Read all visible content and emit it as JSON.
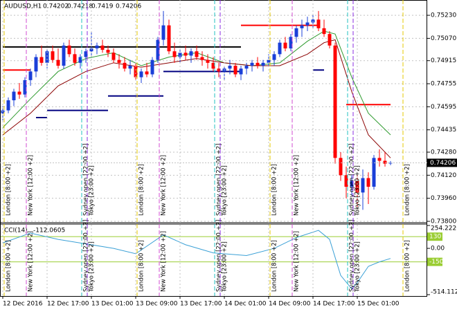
{
  "chart_data": {
    "type": "candlestick",
    "symbol": "AUDUSD,H1",
    "bull_color": "#1a3fd8",
    "bear_color": "#ff0000",
    "grid": true,
    "ylim": [
      0.738,
      0.75336
    ],
    "yticks": [
      {
        "value": 0.7523,
        "label": "0.75230"
      },
      {
        "value": 0.7507,
        "label": "0.75070"
      },
      {
        "value": 0.74915,
        "label": "0.74915"
      },
      {
        "value": 0.74755,
        "label": "0.74755"
      },
      {
        "value": 0.74595,
        "label": "0.74595"
      },
      {
        "value": 0.74435,
        "label": "0.74435"
      },
      {
        "value": 0.7428,
        "label": "0.74280"
      },
      {
        "value": 0.7412,
        "label": "0.74120"
      },
      {
        "value": 0.7396,
        "label": "0.73960"
      },
      {
        "value": 0.738,
        "label": "0.73800"
      }
    ],
    "categories": [
      "12 Dec 2016",
      null,
      null,
      null,
      null,
      null,
      null,
      null,
      "12 Dec 17:00",
      null,
      null,
      null,
      null,
      null,
      null,
      null,
      "13 Dec 01:00",
      null,
      null,
      null,
      null,
      null,
      null,
      null,
      "13 Dec 09:00",
      null,
      null,
      null,
      null,
      null,
      null,
      null,
      "13 Dec 17:00",
      null,
      null,
      null,
      null,
      null,
      null,
      null,
      "14 Dec 01:00",
      null,
      null,
      null,
      null,
      null,
      null,
      null,
      "14 Dec 09:00",
      null,
      null,
      null,
      null,
      null,
      null,
      null,
      "14 Dec 17:00",
      null,
      null,
      null,
      null,
      null,
      null,
      null,
      "15 Dec 01:00",
      null,
      null,
      null,
      null,
      null,
      null
    ],
    "candles": [
      [
        0.7455,
        0.746,
        0.745,
        0.7457
      ],
      [
        0.7457,
        0.7466,
        0.7455,
        0.7464
      ],
      [
        0.7464,
        0.7472,
        0.746,
        0.747
      ],
      [
        0.747,
        0.7476,
        0.7465,
        0.7468
      ],
      [
        0.7468,
        0.748,
        0.7466,
        0.7478
      ],
      [
        0.7478,
        0.7486,
        0.7474,
        0.7484
      ],
      [
        0.7484,
        0.7496,
        0.748,
        0.7494
      ],
      [
        0.7494,
        0.7502,
        0.7488,
        0.749
      ],
      [
        0.749,
        0.75,
        0.7486,
        0.7498
      ],
      [
        0.7498,
        0.7502,
        0.749,
        0.7492
      ],
      [
        0.7492,
        0.75,
        0.7486,
        0.7488
      ],
      [
        0.7488,
        0.7504,
        0.7486,
        0.7502
      ],
      [
        0.7502,
        0.7506,
        0.7494,
        0.7496
      ],
      [
        0.7496,
        0.75,
        0.7488,
        0.749
      ],
      [
        0.749,
        0.7496,
        0.7486,
        0.7494
      ],
      [
        0.7494,
        0.75,
        0.749,
        0.7498
      ],
      [
        0.7498,
        0.7512,
        0.7494,
        0.75
      ],
      [
        0.75,
        0.7504,
        0.7496,
        0.7502
      ],
      [
        0.7502,
        0.7506,
        0.7497,
        0.7499
      ],
      [
        0.7499,
        0.7502,
        0.7494,
        0.7497
      ],
      [
        0.7497,
        0.75,
        0.749,
        0.7492
      ],
      [
        0.7492,
        0.7496,
        0.7486,
        0.749
      ],
      [
        0.749,
        0.7494,
        0.7484,
        0.7486
      ],
      [
        0.7486,
        0.7492,
        0.7482,
        0.7488
      ],
      [
        0.7488,
        0.749,
        0.7478,
        0.748
      ],
      [
        0.748,
        0.7486,
        0.7476,
        0.7484
      ],
      [
        0.7484,
        0.749,
        0.748,
        0.7482
      ],
      [
        0.7482,
        0.7494,
        0.748,
        0.7492
      ],
      [
        0.7492,
        0.7508,
        0.749,
        0.7506
      ],
      [
        0.7506,
        0.7526,
        0.7502,
        0.7516
      ],
      [
        0.7516,
        0.752,
        0.7496,
        0.7498
      ],
      [
        0.7498,
        0.7504,
        0.749,
        0.7494
      ],
      [
        0.7494,
        0.75,
        0.749,
        0.7497
      ],
      [
        0.7497,
        0.7502,
        0.7492,
        0.7495
      ],
      [
        0.7495,
        0.75,
        0.749,
        0.7498
      ],
      [
        0.7498,
        0.7502,
        0.7492,
        0.7494
      ],
      [
        0.7494,
        0.7498,
        0.7488,
        0.7492
      ],
      [
        0.7492,
        0.7496,
        0.7486,
        0.749
      ],
      [
        0.749,
        0.7494,
        0.7484,
        0.7486
      ],
      [
        0.7486,
        0.749,
        0.748,
        0.7484
      ],
      [
        0.7484,
        0.7488,
        0.7478,
        0.7486
      ],
      [
        0.7486,
        0.7492,
        0.7482,
        0.7488
      ],
      [
        0.7488,
        0.749,
        0.748,
        0.7482
      ],
      [
        0.7482,
        0.7488,
        0.7478,
        0.7486
      ],
      [
        0.7486,
        0.749,
        0.7482,
        0.7488
      ],
      [
        0.7488,
        0.7492,
        0.7484,
        0.749
      ],
      [
        0.749,
        0.7494,
        0.7486,
        0.7488
      ],
      [
        0.7488,
        0.7492,
        0.7484,
        0.749
      ],
      [
        0.749,
        0.7496,
        0.7488,
        0.7492
      ],
      [
        0.7492,
        0.7498,
        0.7488,
        0.7496
      ],
      [
        0.7496,
        0.7506,
        0.7494,
        0.7504
      ],
      [
        0.7504,
        0.7508,
        0.7498,
        0.75
      ],
      [
        0.75,
        0.751,
        0.7498,
        0.7508
      ],
      [
        0.7508,
        0.7516,
        0.7504,
        0.7514
      ],
      [
        0.7514,
        0.752,
        0.7508,
        0.7516
      ],
      [
        0.7516,
        0.7522,
        0.7512,
        0.7518
      ],
      [
        0.7518,
        0.7524,
        0.7514,
        0.752
      ],
      [
        0.752,
        0.7526,
        0.7512,
        0.7514
      ],
      [
        0.7514,
        0.752,
        0.7508,
        0.751
      ],
      [
        0.751,
        0.7512,
        0.75,
        0.7502
      ],
      [
        0.7502,
        0.7504,
        0.742,
        0.7424
      ],
      [
        0.7424,
        0.7428,
        0.7408,
        0.7412
      ],
      [
        0.7412,
        0.7418,
        0.7396,
        0.7404
      ],
      [
        0.7404,
        0.7412,
        0.7398,
        0.7408
      ],
      [
        0.7408,
        0.7412,
        0.739,
        0.74
      ],
      [
        0.74,
        0.7416,
        0.7388,
        0.741
      ],
      [
        0.741,
        0.7414,
        0.7392,
        0.7404
      ],
      [
        0.7404,
        0.7426,
        0.7402,
        0.7424
      ],
      [
        0.7424,
        0.743,
        0.7418,
        0.7422
      ],
      [
        0.7422,
        0.7428,
        0.7418,
        0.742
      ],
      [
        0.74202,
        0.74218,
        0.7419,
        0.74206
      ]
    ],
    "moving_averages": [
      {
        "color": "#2e9a2e",
        "x": [
          0,
          5,
          10,
          15,
          20,
          25,
          30,
          35,
          40,
          45,
          50,
          55,
          58,
          60,
          63,
          66,
          70
        ],
        "values": [
          0.7445,
          0.7465,
          0.7484,
          0.7493,
          0.7497,
          0.7488,
          0.7494,
          0.7497,
          0.749,
          0.7488,
          0.749,
          0.7505,
          0.7512,
          0.751,
          0.748,
          0.7455,
          0.744
        ]
      },
      {
        "color": "#8b0000",
        "x": [
          0,
          5,
          10,
          15,
          20,
          25,
          30,
          35,
          40,
          45,
          50,
          55,
          58,
          60,
          63,
          66,
          70
        ],
        "values": [
          0.744,
          0.7455,
          0.7474,
          0.7484,
          0.749,
          0.7487,
          0.749,
          0.7493,
          0.749,
          0.7488,
          0.7488,
          0.7496,
          0.7504,
          0.7506,
          0.747,
          0.744,
          0.7424
        ]
      }
    ],
    "levels": [
      {
        "color": "#ff0000",
        "x": [
          0,
          5
        ],
        "value": 0.7485
      },
      {
        "color": "#ff0000",
        "x": [
          43,
          57
        ],
        "value": 0.7516
      },
      {
        "color": "#ff0000",
        "x": [
          62,
          70
        ],
        "value": 0.7461
      },
      {
        "color": "#000080",
        "x": [
          6,
          8
        ],
        "value": 0.7452
      },
      {
        "color": "#000080",
        "x": [
          8,
          19
        ],
        "value": 0.7457
      },
      {
        "color": "#000080",
        "x": [
          19,
          29
        ],
        "value": 0.7467
      },
      {
        "color": "#000080",
        "x": [
          29,
          43
        ],
        "value": 0.7484
      },
      {
        "color": "#000080",
        "x": [
          56,
          58
        ],
        "value": 0.7485
      },
      {
        "color": "#000000",
        "x": [
          0,
          43
        ],
        "value": 0.7501
      }
    ],
    "sessions": [
      {
        "label": "London [8:00 +2]",
        "color": "#e6c800"
      },
      {
        "label": "New York [12:00 +2]",
        "color": "#d24bd2"
      },
      {
        "label": "Sydney open [22:00 +2]",
        "color": "#20c0c0"
      },
      {
        "label": "Tokyo [23:00 +2]",
        "color": "#8a2be2"
      }
    ],
    "cci": {
      "name": "CCI(14)",
      "color": "#3aa0d6",
      "level_color": "#9acd32",
      "ylim": [
        -514.1127,
        254.2226
      ],
      "yticks": [
        254.2226,
        {
          "value": 0,
          "label": "0.00"
        },
        -514.1127
      ],
      "levels": [
        130,
        -150
      ],
      "x": [
        0,
        5,
        10,
        15,
        20,
        24,
        29,
        33,
        38,
        44,
        49,
        53,
        57,
        59,
        61,
        63,
        64,
        66,
        68,
        70
      ],
      "values": [
        60,
        170,
        100,
        50,
        0,
        -60,
        150,
        40,
        -50,
        -80,
        0,
        120,
        200,
        100,
        -300,
        -450,
        -380,
        -200,
        -150,
        -112.0605
      ]
    }
  }
}
